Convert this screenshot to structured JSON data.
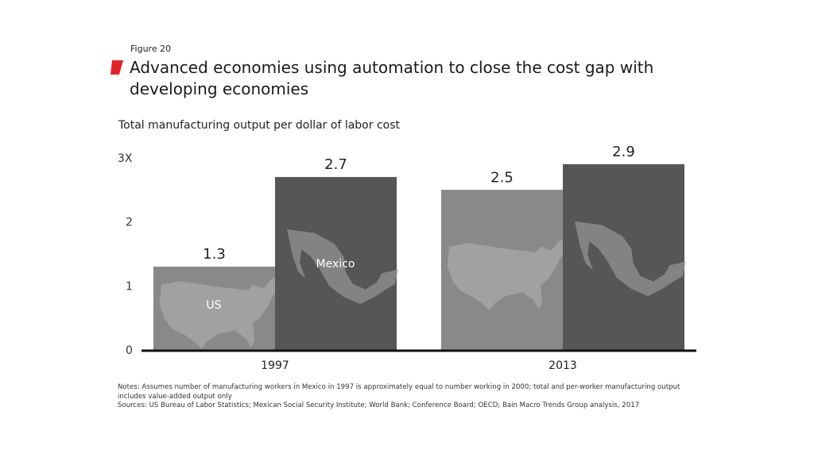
{
  "figure_label": "Figure 20",
  "title": "Advanced economies using automation to close the cost gap with developing economies",
  "colors": {
    "accent": "#e4232b",
    "us_bar": "#898989",
    "mexico_bar": "#565656",
    "map_fill": "#a9a9a9"
  },
  "chart_data": {
    "type": "bar",
    "subtitle": "Total manufacturing output per dollar of labor cost",
    "categories": [
      "1997",
      "2013"
    ],
    "series": [
      {
        "name": "US",
        "values": [
          1.3,
          2.5
        ],
        "icon": "us-map"
      },
      {
        "name": "Mexico",
        "values": [
          2.7,
          2.9
        ],
        "icon": "mexico-map"
      }
    ],
    "data_labels": [
      [
        "1.3",
        "2.5"
      ],
      [
        "2.7",
        "2.9"
      ]
    ],
    "yticks": [
      "0",
      "1",
      "2",
      "3X"
    ],
    "ylim": [
      0,
      3
    ],
    "grid": false
  },
  "notes": "Notes: Assumes number of manufacturing workers in Mexico in 1997 is approximately equal to number working in 2000; total and per-worker manufacturing output includes value-added output only",
  "sources": "Sources: US Bureau of Labor Statistics; Mexican Social Security Institute; World Bank; Conference Board; OECD; Bain Macro Trends Group analysis, 2017"
}
